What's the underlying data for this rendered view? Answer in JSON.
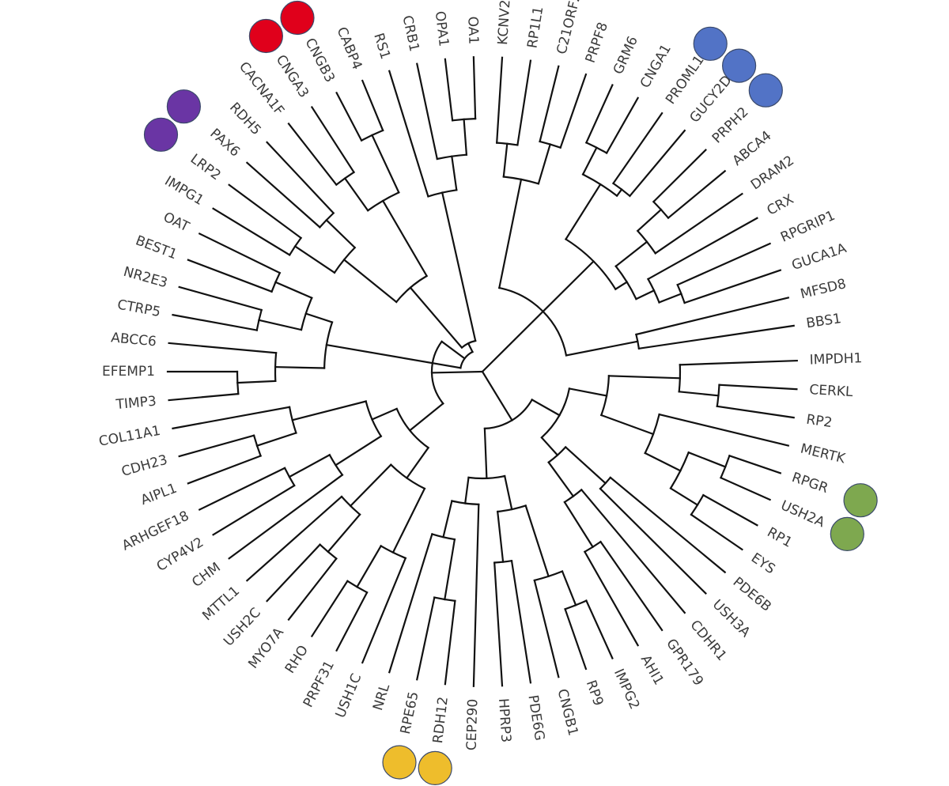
{
  "diagram": {
    "type": "circular-dendrogram",
    "leaves": [
      "IMPDH1",
      "CERKL",
      "RP2",
      "MERTK",
      "RPGR",
      "USH2A",
      "RP1",
      "EYS",
      "PDE6B",
      "USH3A",
      "CDHR1",
      "GPR179",
      "AHI1",
      "IMPG2",
      "RP9",
      "CNGB1",
      "PDE6G",
      "HPRP3",
      "CEP290",
      "RDH12",
      "RPE65",
      "NRL",
      "USH1C",
      "PRPF31",
      "RHO",
      "MYO7A",
      "USH2C",
      "MTTL1",
      "CHM",
      "CYP4V2",
      "ARHGEF18",
      "AIPL1",
      "CDH23",
      "COL11A1",
      "TIMP3",
      "EFEMP1",
      "ABCC6",
      "CTRP5",
      "NR2E3",
      "BEST1",
      "OAT",
      "IMPG1",
      "LRP2",
      "PAX6",
      "RDH5",
      "CACNA1F",
      "CNGA3",
      "CNGB3",
      "CABP4",
      "RS1",
      "CRB1",
      "OPA1",
      "OA1",
      "KCNV2",
      "RP1L1",
      "C21ORF2",
      "PRPF8",
      "GRM6",
      "CNGA1",
      "PROML1",
      "GUCY2D",
      "PRPH2",
      "ABCA4",
      "DRAM2",
      "CRX",
      "RPGRIP1",
      "GUCA1A",
      "MFSD8",
      "BBS1"
    ],
    "highlight_groups": [
      {
        "color": "#e0001b",
        "genes": [
          "CNGA3",
          "CNGB3"
        ]
      },
      {
        "color": "#6a35a4",
        "genes": [
          "PAX6",
          "LRP2"
        ]
      },
      {
        "color": "#5273c6",
        "genes": [
          "PROML1",
          "GUCY2D",
          "PRPH2"
        ]
      },
      {
        "color": "#7ea84f",
        "genes": [
          "RPGR",
          "USH2A"
        ]
      },
      {
        "color": "#eebd2c",
        "genes": [
          "RPE65",
          "RDH12"
        ]
      }
    ]
  }
}
